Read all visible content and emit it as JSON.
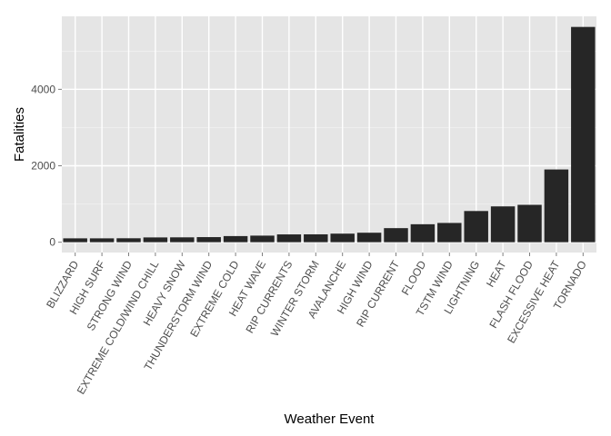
{
  "chart_data": {
    "type": "bar",
    "xlabel": "Weather Event",
    "ylabel": "Fatalities",
    "ylim": [
      0,
      5700
    ],
    "y_ticks": [
      0,
      2000,
      4000
    ],
    "grid": true,
    "panel_background": "#e5e5e5",
    "grid_color": "#ffffff",
    "bar_color": "#262626",
    "tick_label_color": "#4d4d4d",
    "x_label_rotation_deg": -60,
    "categories": [
      "BLIZZARD",
      "HIGH SURF",
      "STRONG WIND",
      "EXTREME COLD/WIND CHILL",
      "HEAVY SNOW",
      "THUNDERSTORM WIND",
      "EXTREME COLD",
      "HEAT WAVE",
      "RIP CURRENTS",
      "WINTER STORM",
      "AVALANCHE",
      "HIGH WIND",
      "RIP CURRENT",
      "FLOOD",
      "TSTM WIND",
      "LIGHTNING",
      "HEAT",
      "FLASH FLOOD",
      "EXCESSIVE HEAT",
      "TORNADO"
    ],
    "values": [
      101,
      101,
      103,
      125,
      127,
      133,
      160,
      172,
      204,
      206,
      224,
      248,
      368,
      470,
      504,
      816,
      937,
      978,
      1903,
      5633
    ]
  }
}
